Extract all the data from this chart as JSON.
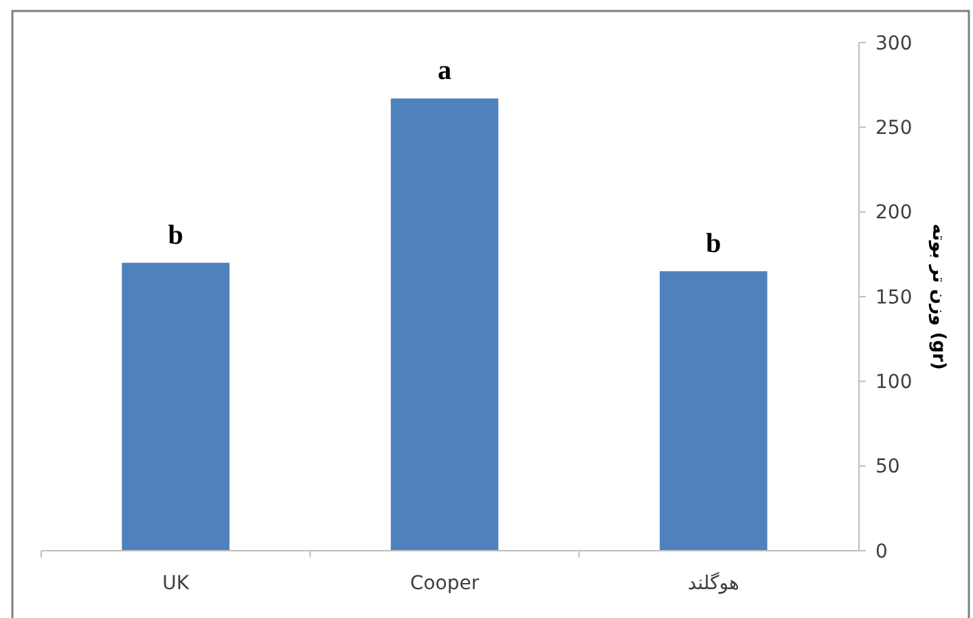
{
  "chart_data": {
    "type": "bar",
    "ylabel": "وزن تر بوته (gr)",
    "categories": [
      "UK",
      "Cooper",
      "هوگلند"
    ],
    "values": [
      170,
      267,
      165
    ],
    "color": "#4f81bd",
    "ylim": [
      0,
      300
    ],
    "yticks": [
      0,
      50,
      100,
      150,
      200,
      250,
      300
    ],
    "grid": false,
    "annotations": [
      {
        "text": "b",
        "x": "UK",
        "y": 170
      },
      {
        "text": "a",
        "x": "Cooper",
        "y": 267
      },
      {
        "text": "b",
        "x": "هوگلند",
        "y": 165
      }
    ]
  }
}
